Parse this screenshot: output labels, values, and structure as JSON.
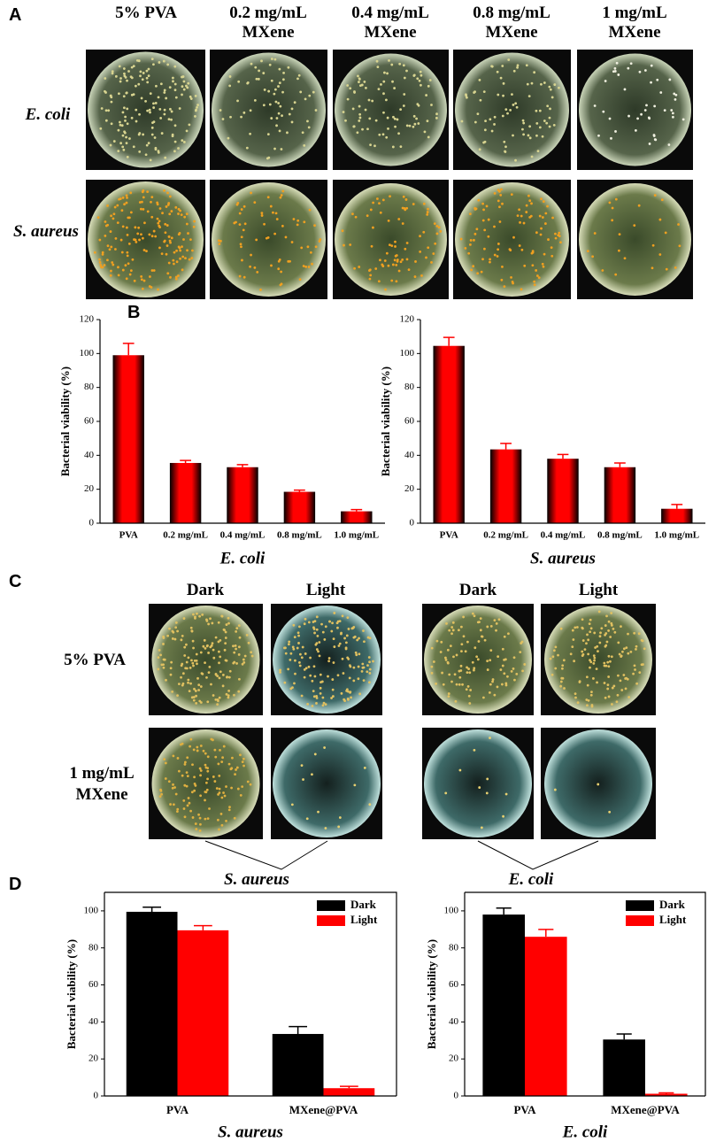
{
  "panel_a": {
    "label": "A",
    "columns": [
      "5% PVA",
      "0.2 mg/mL MXene",
      "0.4 mg/mL MXene",
      "0.8 mg/mL MXene",
      "1 mg/mL MXene"
    ],
    "rows": [
      "E. coli",
      "S. aureus"
    ]
  },
  "panel_b": {
    "label": "B"
  },
  "panel_c": {
    "label": "C",
    "columns": [
      "Dark",
      "Light",
      "Dark",
      "Light"
    ],
    "rows": [
      "5% PVA",
      "1 mg/mL MXene"
    ],
    "groups": [
      "S. aureus",
      "E. coli"
    ]
  },
  "panel_d": {
    "label": "D"
  },
  "chart_data": [
    {
      "type": "bar",
      "ylabel": "Bacterial viability (%)",
      "xlabel": "E. coli",
      "bar_shading": "cylinder",
      "categories": [
        "PVA",
        "0.2 mg/mL",
        "0.4 mg/mL",
        "0.8 mg/mL",
        "1.0 mg/mL"
      ],
      "values": [
        99,
        35.5,
        33,
        18.5,
        7
      ],
      "errors": [
        7,
        1.5,
        1.5,
        1,
        1
      ],
      "color": "#ff0000",
      "ylim": [
        0,
        120
      ],
      "yticks": [
        0,
        20,
        40,
        60,
        80,
        100,
        120
      ],
      "box": false
    },
    {
      "type": "bar",
      "ylabel": "Bacterial viability (%)",
      "xlabel": "S. aureus",
      "bar_shading": "cylinder",
      "categories": [
        "PVA",
        "0.2 mg/mL",
        "0.4 mg/mL",
        "0.8 mg/mL",
        "1.0 mg/mL"
      ],
      "values": [
        104.5,
        43.5,
        38,
        33,
        8.5
      ],
      "errors": [
        5,
        3.5,
        2.5,
        2.5,
        2.5
      ],
      "color": "#ff0000",
      "ylim": [
        0,
        120
      ],
      "yticks": [
        0,
        20,
        40,
        60,
        80,
        100,
        120
      ],
      "box": false
    },
    {
      "type": "bar",
      "ylabel": "Bacterial viability (%)",
      "xlabel": "S. aureus",
      "categories": [
        "PVA",
        "MXene@PVA"
      ],
      "series": [
        {
          "name": "Dark",
          "color": "#000000",
          "values": [
            99.5,
            33.5
          ],
          "errors": [
            2.5,
            4
          ]
        },
        {
          "name": "Light",
          "color": "#ff0000",
          "values": [
            89.5,
            4.2
          ],
          "errors": [
            2.5,
            1
          ]
        }
      ],
      "ylim": [
        0,
        110
      ],
      "yticks": [
        0,
        20,
        40,
        60,
        80,
        100
      ],
      "box": true,
      "legend": "top-right"
    },
    {
      "type": "bar",
      "ylabel": "Bacterial viability (%)",
      "xlabel": "E. coli",
      "categories": [
        "PVA",
        "MXene@PVA"
      ],
      "series": [
        {
          "name": "Dark",
          "color": "#000000",
          "values": [
            98,
            30.5
          ],
          "errors": [
            3.5,
            3
          ]
        },
        {
          "name": "Light",
          "color": "#ff0000",
          "values": [
            86,
            1.2
          ],
          "errors": [
            4,
            0.5
          ]
        }
      ],
      "ylim": [
        0,
        110
      ],
      "yticks": [
        0,
        20,
        40,
        60,
        80,
        100
      ],
      "box": true,
      "legend": "top-right"
    }
  ]
}
